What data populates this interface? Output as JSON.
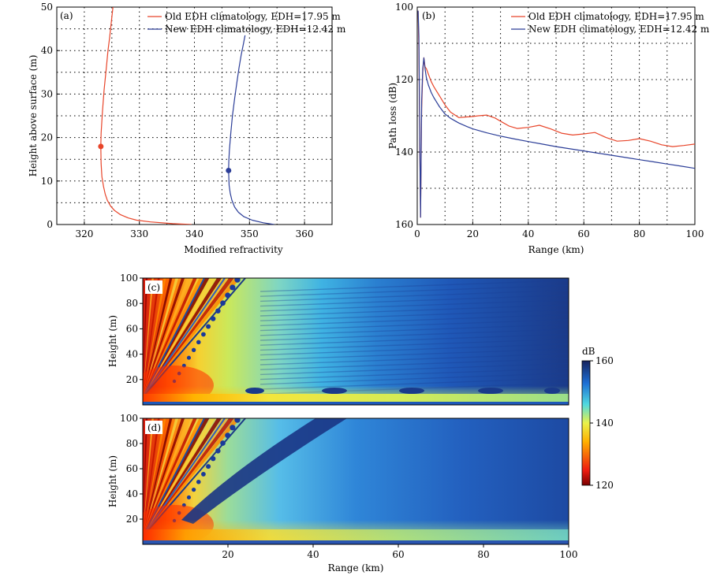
{
  "colors": {
    "old": "#e8452a",
    "new": "#2c3e98",
    "grid": "#000000",
    "frame": "#000000"
  },
  "chart_data": [
    {
      "id": "a",
      "type": "line",
      "panel_label": "(a)",
      "xlabel": "Modified refractivity",
      "ylabel": "Height above surface (m)",
      "xlim": [
        315,
        365
      ],
      "ylim": [
        0,
        50
      ],
      "xticks": [
        320,
        330,
        340,
        350,
        360
      ],
      "yticks": [
        0,
        10,
        20,
        30,
        40,
        50
      ],
      "grid": true,
      "legend_position": "top-right",
      "series": [
        {
          "name": "Old EDH climatology, EDH=17.95 m",
          "color": "#e8452a",
          "x": [
            339.5,
            336.0,
            332.0,
            329.5,
            328.0,
            326.5,
            325.5,
            324.8,
            324.2,
            323.8,
            323.5,
            323.2,
            323.05,
            323.0,
            323.05,
            323.3,
            323.6,
            324.0,
            324.3,
            324.6,
            324.9,
            325.2
          ],
          "y": [
            0,
            0.2,
            0.6,
            1.0,
            1.5,
            2.3,
            3.2,
            4.2,
            5.5,
            7.0,
            8.7,
            11.0,
            14.0,
            17.95,
            21.0,
            26.0,
            31.0,
            36.0,
            40.0,
            43.0,
            46.5,
            50.0
          ],
          "marker": {
            "x": 323.0,
            "y": 17.95
          }
        },
        {
          "name": "New EDH climatology, EDH=12.42 m",
          "color": "#2c3e98",
          "x": [
            354.5,
            352.5,
            350.5,
            349.0,
            348.0,
            347.3,
            346.8,
            346.5,
            346.3,
            346.2,
            346.25,
            346.35,
            346.6,
            346.9,
            347.3,
            347.7,
            348.1,
            348.5,
            348.9,
            349.2
          ],
          "y": [
            0,
            0.4,
            1.0,
            1.8,
            2.8,
            4.0,
            5.6,
            7.2,
            9.0,
            12.42,
            14.5,
            17.0,
            21.0,
            25.0,
            29.0,
            32.5,
            36.0,
            39.0,
            41.5,
            43.5
          ],
          "marker": {
            "x": 346.2,
            "y": 12.42
          }
        }
      ]
    },
    {
      "id": "b",
      "type": "line",
      "panel_label": "(b)",
      "xlabel": "Range (km)",
      "ylabel": "Path loss (dB)",
      "xlim": [
        0,
        100
      ],
      "ylim": [
        160,
        100
      ],
      "xticks": [
        0,
        20,
        40,
        60,
        80,
        100
      ],
      "yticks": [
        100,
        120,
        140,
        160
      ],
      "grid": true,
      "legend_position": "top-right",
      "series": [
        {
          "name": "Old EDH climatology, EDH=17.95 m",
          "color": "#e8452a",
          "x": [
            0.3,
            0.6,
            0.9,
            1.2,
            1.6,
            2.0,
            2.4,
            2.8,
            3.3,
            4,
            5,
            6,
            8,
            10,
            12,
            15,
            18,
            20,
            22,
            25,
            28,
            30,
            33,
            36,
            40,
            44,
            48,
            52,
            56,
            60,
            64,
            68,
            72,
            76,
            80,
            84,
            88,
            92,
            96,
            100
          ],
          "y": [
            101,
            112,
            138,
            158,
            128,
            118,
            114,
            116.5,
            117,
            118.5,
            120.5,
            122,
            124.5,
            127,
            129,
            130.5,
            130.3,
            130.2,
            130.0,
            129.8,
            130.6,
            131.5,
            132.8,
            133.5,
            133.2,
            132.6,
            133.6,
            134.8,
            135.3,
            135.0,
            134.6,
            136.0,
            137.0,
            136.8,
            136.3,
            137.0,
            138.0,
            138.5,
            138.2,
            137.8
          ]
        },
        {
          "name": "New EDH climatology, EDH=12.42 m",
          "color": "#2c3e98",
          "x": [
            0.3,
            0.6,
            0.9,
            1.2,
            1.6,
            2.0,
            2.4,
            2.8,
            3.3,
            4,
            5,
            6,
            8,
            10,
            12,
            15,
            18,
            20,
            25,
            30,
            35,
            40,
            45,
            50,
            55,
            60,
            65,
            70,
            75,
            80,
            85,
            90,
            95,
            100
          ],
          "y": [
            101,
            108,
            137,
            158,
            126,
            117,
            114,
            117,
            119.5,
            121.5,
            123.5,
            125,
            127.5,
            129.5,
            130.7,
            132,
            133,
            133.6,
            134.7,
            135.6,
            136.4,
            137.1,
            137.8,
            138.5,
            139.1,
            139.7,
            140.3,
            140.9,
            141.5,
            142.1,
            142.7,
            143.3,
            143.9,
            144.5
          ]
        }
      ]
    },
    {
      "id": "c",
      "type": "heatmap",
      "panel_label": "(c)",
      "xlabel": "",
      "ylabel": "Height (m)",
      "xlim": [
        0,
        100
      ],
      "ylim": [
        0,
        100
      ],
      "yticks": [
        20,
        40,
        60,
        80,
        100
      ],
      "value_range": [
        120,
        160
      ]
    },
    {
      "id": "d",
      "type": "heatmap",
      "panel_label": "(d)",
      "xlabel": "Range (km)",
      "ylabel": "Height (m)",
      "xlim": [
        0,
        100
      ],
      "ylim": [
        0,
        100
      ],
      "xticks": [
        20,
        40,
        60,
        80,
        100
      ],
      "yticks": [
        20,
        40,
        60,
        80,
        100
      ],
      "value_range": [
        120,
        160
      ]
    },
    {
      "id": "colorbar",
      "type": "colorbar",
      "label": "dB",
      "range": [
        120,
        160
      ],
      "ticks": [
        120,
        140,
        160
      ],
      "colormap": "jet-reversed"
    }
  ]
}
